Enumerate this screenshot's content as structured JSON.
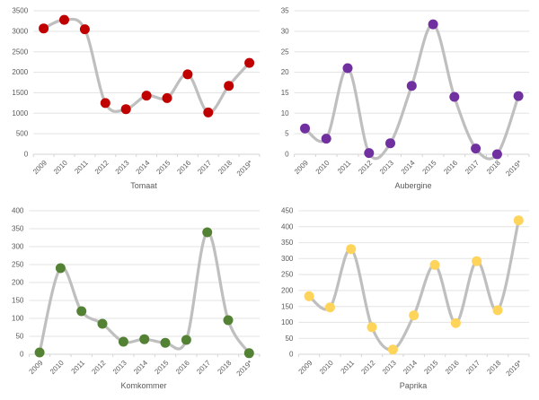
{
  "style": {
    "background": "#FFFFFF",
    "axis_text_color": "#595959",
    "title_color": "#595959",
    "grid_color": "#E3E3E3",
    "axis_line_color": "#D6D6D6",
    "line_color": "#BFBFBF"
  },
  "chart_data": [
    {
      "type": "line",
      "title": "Tomaat",
      "marker_color": "#C00000",
      "line_color": "#BFBFBF",
      "categories": [
        "2009",
        "2010",
        "2011",
        "2012",
        "2013",
        "2014",
        "2015",
        "2016",
        "2017",
        "2018",
        "2019*"
      ],
      "values": [
        3070,
        3280,
        3050,
        1250,
        1100,
        1430,
        1370,
        1950,
        1020,
        1670,
        2230
      ],
      "xlabel": "Tomaat",
      "ylabel": "",
      "ylim": [
        0,
        3500
      ],
      "ytick_step": 500,
      "grid": true,
      "legend": "none",
      "smooth": true
    },
    {
      "type": "line",
      "title": "Aubergine",
      "marker_color": "#7030A0",
      "line_color": "#BFBFBF",
      "categories": [
        "2009",
        "2010",
        "2011",
        "2012",
        "2013",
        "2014",
        "2015",
        "2016",
        "2017",
        "2018",
        "2019*"
      ],
      "values": [
        6.3,
        3.8,
        21,
        0.3,
        2.7,
        16.7,
        31.7,
        14,
        1.4,
        0,
        14.2
      ],
      "xlabel": "Aubergine",
      "ylabel": "",
      "ylim": [
        0,
        35
      ],
      "ytick_step": 5,
      "grid": true,
      "legend": "none",
      "smooth": true
    },
    {
      "type": "line",
      "title": "Komkommer",
      "marker_color": "#548235",
      "line_color": "#BFBFBF",
      "categories": [
        "2009",
        "2010",
        "2011",
        "2012",
        "2013",
        "2014",
        "2015",
        "2016",
        "2017",
        "2018",
        "2019*"
      ],
      "values": [
        5,
        240,
        120,
        85,
        35,
        42,
        32,
        40,
        340,
        95,
        3
      ],
      "xlabel": "Komkommer",
      "ylabel": "",
      "ylim": [
        0,
        400
      ],
      "ytick_step": 50,
      "grid": true,
      "legend": "none",
      "smooth": true
    },
    {
      "type": "line",
      "title": "Paprika",
      "marker_color": "#FFD45A",
      "line_color": "#BFBFBF",
      "categories": [
        "2009",
        "2010",
        "2011",
        "2012",
        "2013",
        "2014",
        "2015",
        "2016",
        "2017",
        "2018",
        "2019*"
      ],
      "values": [
        182,
        147,
        330,
        85,
        15,
        122,
        280,
        98,
        292,
        138,
        420
      ],
      "xlabel": "Paprika",
      "ylabel": "",
      "ylim": [
        0,
        450
      ],
      "ytick_step": 50,
      "grid": true,
      "legend": "none",
      "smooth": true
    }
  ]
}
